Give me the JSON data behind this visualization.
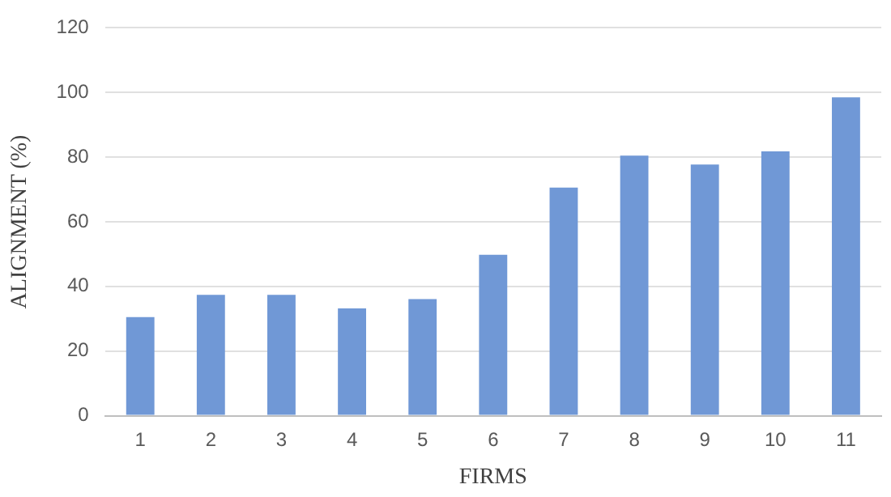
{
  "chart_data": {
    "type": "bar",
    "xlabel": "FIRMS",
    "ylabel": "ALIGNMENT (%)",
    "categories": [
      "1",
      "2",
      "3",
      "4",
      "5",
      "6",
      "7",
      "8",
      "9",
      "10",
      "11"
    ],
    "values": [
      30.5,
      37.4,
      37.4,
      33.2,
      36.1,
      49.8,
      70.6,
      80.5,
      77.7,
      81.8,
      98.5
    ],
    "color": "#7098d6",
    "ylim": [
      0,
      120
    ],
    "yticks": [
      0,
      20,
      40,
      60,
      80,
      100,
      120
    ],
    "grid": "y"
  }
}
